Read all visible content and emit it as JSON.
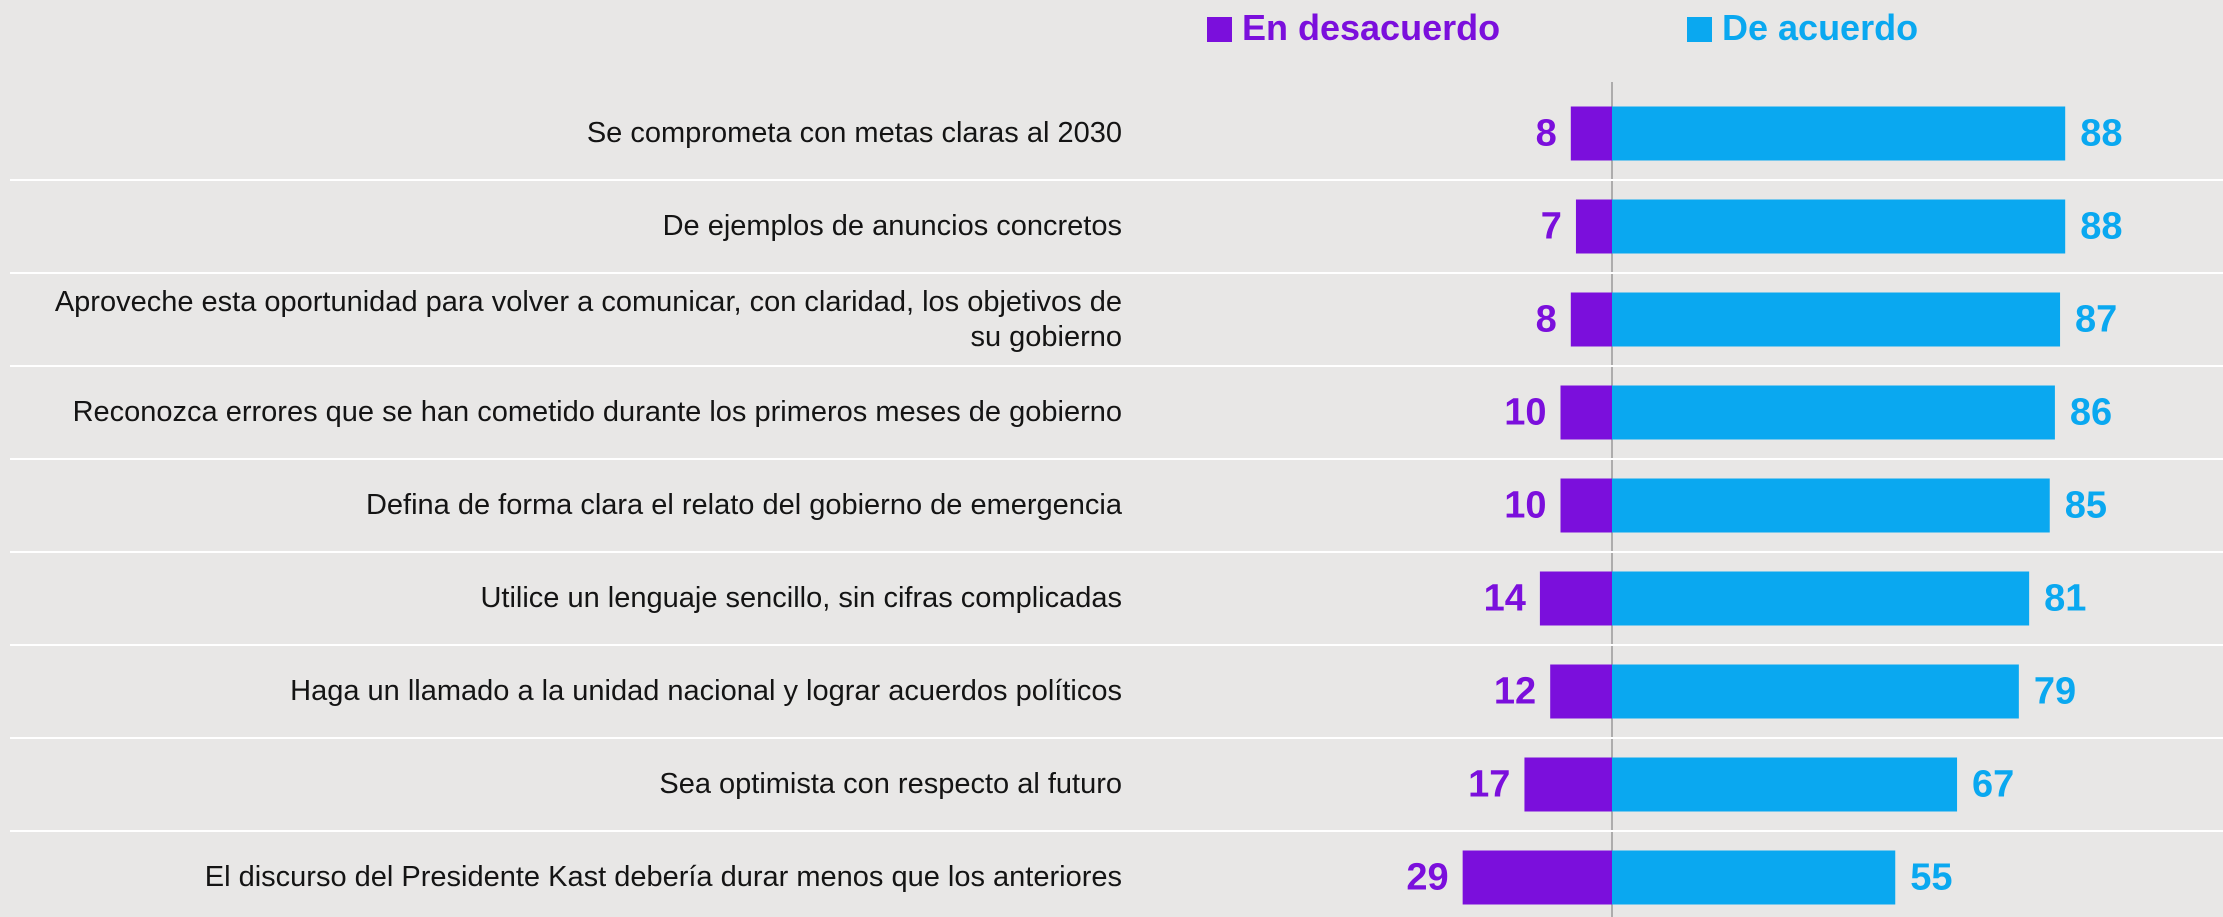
{
  "chart_data": {
    "type": "diverging_bar",
    "categories": [
      "Se comprometa con metas claras al 2030",
      "De ejemplos de anuncios concretos",
      "Aproveche esta oportunidad para volver a comunicar, con claridad, los objetivos de su gobierno",
      "Reconozca errores que se han cometido durante los primeros meses de gobierno",
      "Defina de forma clara el relato del gobierno de emergencia",
      "Utilice un lenguaje sencillo, sin cifras complicadas",
      "Haga un llamado a la unidad nacional y lograr acuerdos políticos",
      "Sea optimista con respecto al futuro",
      "El discurso del Presidente Kast debería durar menos que los anteriores"
    ],
    "series": [
      {
        "name": "En desacuerdo",
        "color": "#7b0fdc",
        "values": [
          8,
          7,
          8,
          10,
          10,
          14,
          12,
          17,
          29
        ]
      },
      {
        "name": "De acuerdo",
        "color": "#0aa8f0",
        "values": [
          88,
          88,
          87,
          86,
          85,
          81,
          79,
          67,
          55
        ]
      }
    ]
  }
}
